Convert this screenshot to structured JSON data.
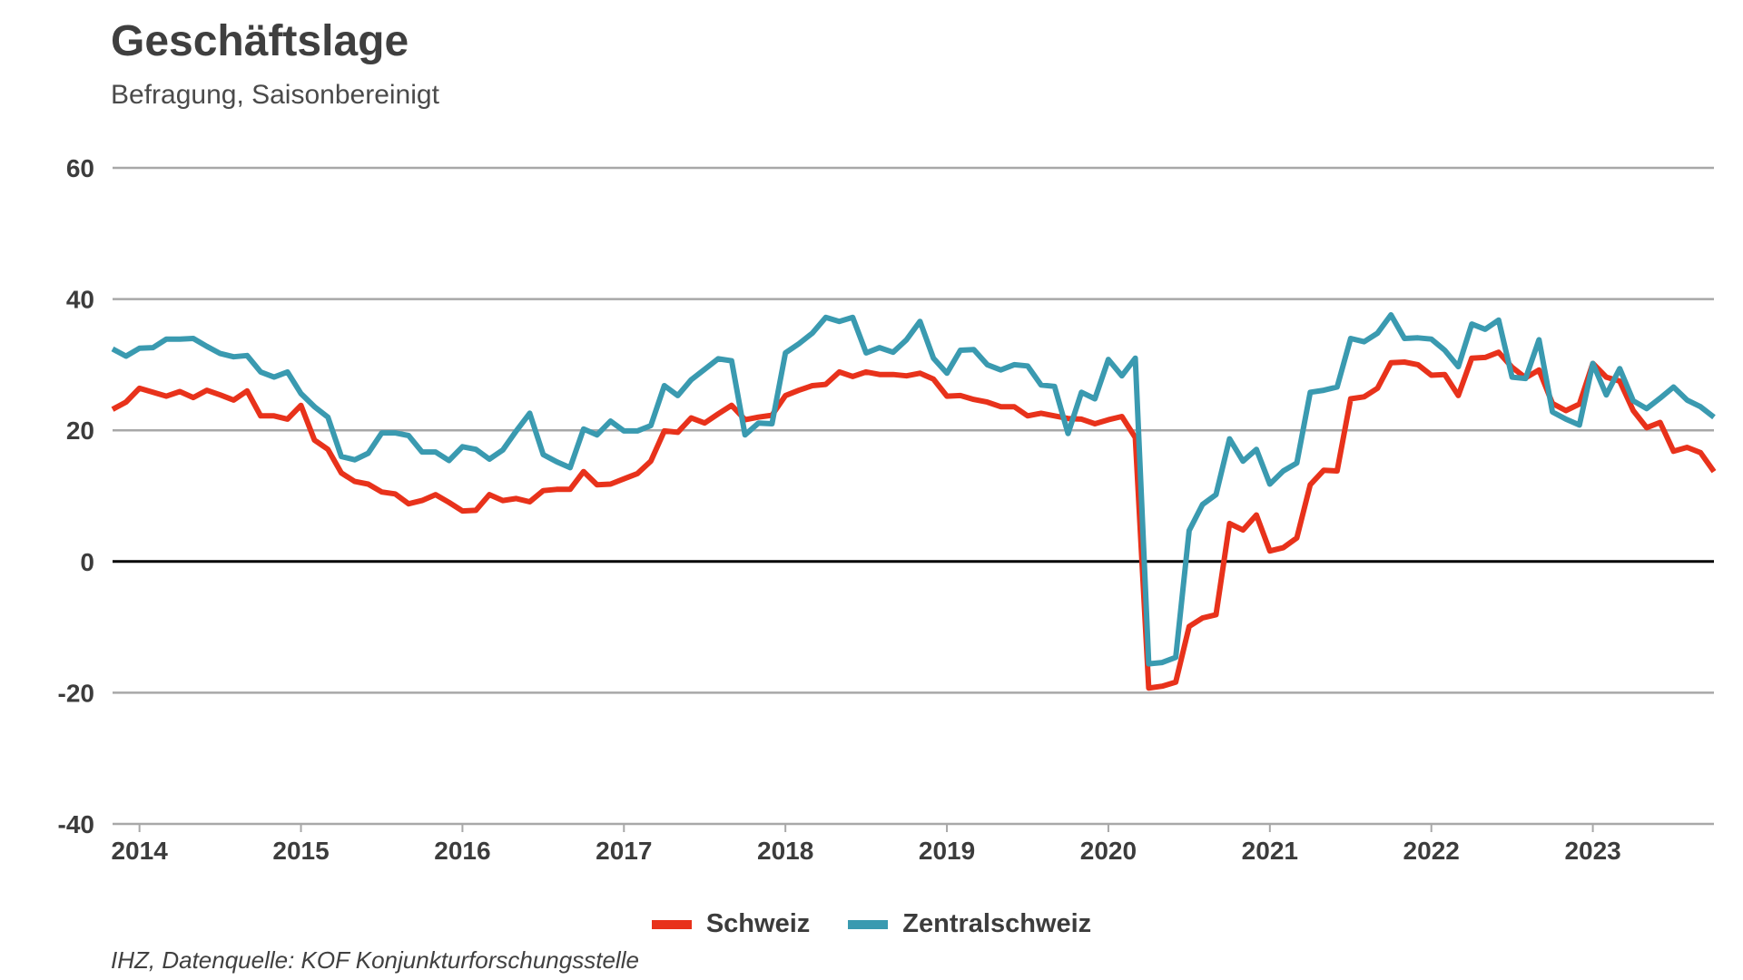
{
  "header": {
    "title": "Geschäftslage",
    "subtitle": "Befragung, Saisonbereinigt"
  },
  "source": "IHZ, Datenquelle: KOF Konjunkturforschungsstelle",
  "chart_data": {
    "type": "line",
    "title": "Geschäftslage",
    "subtitle": "Befragung, Saisonbereinigt",
    "xlabel": "",
    "ylabel": "",
    "ylim": [
      -40,
      60
    ],
    "yticks": [
      -40,
      -20,
      0,
      20,
      40,
      60
    ],
    "x_tick_labels": [
      "2014",
      "2015",
      "2016",
      "2017",
      "2018",
      "2019",
      "2020",
      "2021",
      "2022",
      "2023"
    ],
    "x_start": "2013-11",
    "x_end": "2023-10",
    "grid": true,
    "legend": "bottom-center",
    "x": [
      "2013-11",
      "2013-12",
      "2014-01",
      "2014-02",
      "2014-03",
      "2014-04",
      "2014-05",
      "2014-06",
      "2014-07",
      "2014-08",
      "2014-09",
      "2014-10",
      "2014-11",
      "2014-12",
      "2015-01",
      "2015-02",
      "2015-03",
      "2015-04",
      "2015-05",
      "2015-06",
      "2015-07",
      "2015-08",
      "2015-09",
      "2015-10",
      "2015-11",
      "2015-12",
      "2016-01",
      "2016-02",
      "2016-03",
      "2016-04",
      "2016-05",
      "2016-06",
      "2016-07",
      "2016-08",
      "2016-09",
      "2016-10",
      "2016-11",
      "2016-12",
      "2017-01",
      "2017-02",
      "2017-03",
      "2017-04",
      "2017-05",
      "2017-06",
      "2017-07",
      "2017-08",
      "2017-09",
      "2017-10",
      "2017-11",
      "2017-12",
      "2018-01",
      "2018-02",
      "2018-03",
      "2018-04",
      "2018-05",
      "2018-06",
      "2018-07",
      "2018-08",
      "2018-09",
      "2018-10",
      "2018-11",
      "2018-12",
      "2019-01",
      "2019-02",
      "2019-03",
      "2019-04",
      "2019-05",
      "2019-06",
      "2019-07",
      "2019-08",
      "2019-09",
      "2019-10",
      "2019-11",
      "2019-12",
      "2020-01",
      "2020-02",
      "2020-03",
      "2020-04",
      "2020-05",
      "2020-06",
      "2020-07",
      "2020-08",
      "2020-09",
      "2020-10",
      "2020-11",
      "2020-12",
      "2021-01",
      "2021-02",
      "2021-03",
      "2021-04",
      "2021-05",
      "2021-06",
      "2021-07",
      "2021-08",
      "2021-09",
      "2021-10",
      "2021-11",
      "2021-12",
      "2022-01",
      "2022-02",
      "2022-03",
      "2022-04",
      "2022-05",
      "2022-06",
      "2022-07",
      "2022-08",
      "2022-09",
      "2022-10",
      "2022-11",
      "2022-12",
      "2023-01",
      "2023-02",
      "2023-03",
      "2023-04",
      "2023-05",
      "2023-06",
      "2023-07",
      "2023-08",
      "2023-09",
      "2023-10"
    ],
    "series": [
      {
        "name": "Schweiz",
        "color": "#e8321b",
        "values": [
          23.2,
          24.3,
          26.4,
          25.8,
          25.2,
          25.9,
          25.0,
          26.1,
          25.4,
          24.6,
          26.0,
          22.2,
          22.2,
          21.7,
          23.8,
          18.5,
          17.1,
          13.5,
          12.2,
          11.8,
          10.6,
          10.3,
          8.8,
          9.3,
          10.2,
          9.0,
          7.7,
          7.8,
          10.2,
          9.3,
          9.6,
          9.1,
          10.8,
          11.0,
          11.0,
          13.7,
          11.7,
          11.8,
          12.6,
          13.4,
          15.3,
          19.9,
          19.7,
          21.9,
          21.1,
          22.5,
          23.8,
          21.6,
          22.0,
          22.3,
          25.3,
          26.1,
          26.8,
          27.0,
          28.9,
          28.2,
          28.9,
          28.5,
          28.5,
          28.3,
          28.7,
          27.8,
          25.2,
          25.3,
          24.7,
          24.3,
          23.6,
          23.6,
          22.2,
          22.6,
          22.2,
          21.8,
          21.7,
          21.0,
          21.6,
          22.1,
          18.9,
          -19.3,
          -19.0,
          -18.4,
          -9.9,
          -8.6,
          -8.1,
          5.8,
          4.8,
          7.1,
          1.6,
          2.1,
          3.6,
          11.7,
          13.9,
          13.8,
          24.8,
          25.1,
          26.4,
          30.3,
          30.4,
          30.0,
          28.4,
          28.5,
          25.3,
          31.0,
          31.1,
          31.9,
          29.6,
          28.0,
          29.2,
          24.1,
          23.0,
          24.0,
          30.2,
          28.1,
          27.5,
          23.0,
          20.4,
          21.2,
          16.8,
          17.4,
          16.6,
          13.7
        ]
      },
      {
        "name": "Zentralschweiz",
        "color": "#3a9ab0",
        "values": [
          32.4,
          31.3,
          32.5,
          32.6,
          33.9,
          33.9,
          34.0,
          32.8,
          31.7,
          31.2,
          31.4,
          28.9,
          28.1,
          28.9,
          25.6,
          23.6,
          22.0,
          16.0,
          15.5,
          16.5,
          19.6,
          19.6,
          19.2,
          16.7,
          16.7,
          15.4,
          17.5,
          17.1,
          15.6,
          17.0,
          19.9,
          22.6,
          16.3,
          15.2,
          14.3,
          20.2,
          19.3,
          21.4,
          19.9,
          19.9,
          20.7,
          26.8,
          25.3,
          27.7,
          29.3,
          30.9,
          30.6,
          19.3,
          21.1,
          21.0,
          31.8,
          33.2,
          34.8,
          37.2,
          36.6,
          37.2,
          31.8,
          32.6,
          31.9,
          33.8,
          36.6,
          31.0,
          28.7,
          32.2,
          32.3,
          30.0,
          29.2,
          30.0,
          29.8,
          26.9,
          26.7,
          19.5,
          25.8,
          24.8,
          30.8,
          28.3,
          31.0,
          -15.6,
          -15.4,
          -14.6,
          4.7,
          8.7,
          10.2,
          18.7,
          15.3,
          17.1,
          11.8,
          13.8,
          15.0,
          25.8,
          26.1,
          26.6,
          34.0,
          33.5,
          34.8,
          37.6,
          34.0,
          34.1,
          33.9,
          32.2,
          29.7,
          36.2,
          35.4,
          36.8,
          28.1,
          27.9,
          33.8,
          22.8,
          21.7,
          20.8,
          30.2,
          25.4,
          29.4,
          24.5,
          23.3,
          24.9,
          26.6,
          24.6,
          23.6,
          22.0
        ]
      }
    ]
  }
}
